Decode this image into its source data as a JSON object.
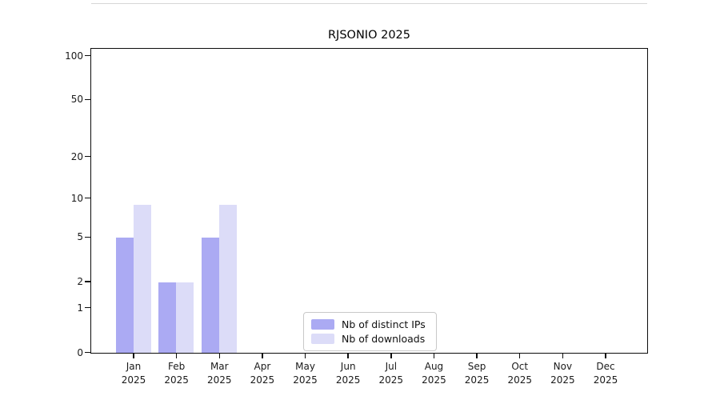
{
  "chart_data": {
    "type": "bar",
    "title": "RJSONIO 2025",
    "categories": [
      "Jan",
      "Feb",
      "Mar",
      "Apr",
      "May",
      "Jun",
      "Jul",
      "Aug",
      "Sep",
      "Oct",
      "Nov",
      "Dec"
    ],
    "year_label": "2025",
    "series": [
      {
        "name": "Nb of distinct IPs",
        "color": "#abaaf3",
        "values": [
          5,
          2,
          5,
          0,
          0,
          0,
          0,
          0,
          0,
          0,
          0,
          0
        ]
      },
      {
        "name": "Nb of downloads",
        "color": "#dcdcf8",
        "values": [
          9,
          2,
          9,
          0,
          0,
          0,
          0,
          0,
          0,
          0,
          0,
          0
        ]
      }
    ],
    "ylabel": "",
    "xlabel": "",
    "y_scale": "log10(1+x)",
    "y_tick_labels": [
      "0",
      "1",
      "2",
      "5",
      "10",
      "20",
      "50",
      "100"
    ],
    "y_tick_values": [
      0,
      1,
      2,
      5,
      10,
      20,
      50,
      100
    ],
    "y_minor_gridline_values": [
      3,
      4,
      6,
      7,
      8,
      9,
      30,
      40,
      60,
      70,
      80,
      90
    ],
    "ylim": [
      0,
      115
    ],
    "grid": true,
    "legend_position": "lower center"
  },
  "colors": {
    "axis_spine": "#0c0c0c",
    "major_grid": "#d6d6d6",
    "minor_grid": "#efefef",
    "background": "#ffffff"
  }
}
